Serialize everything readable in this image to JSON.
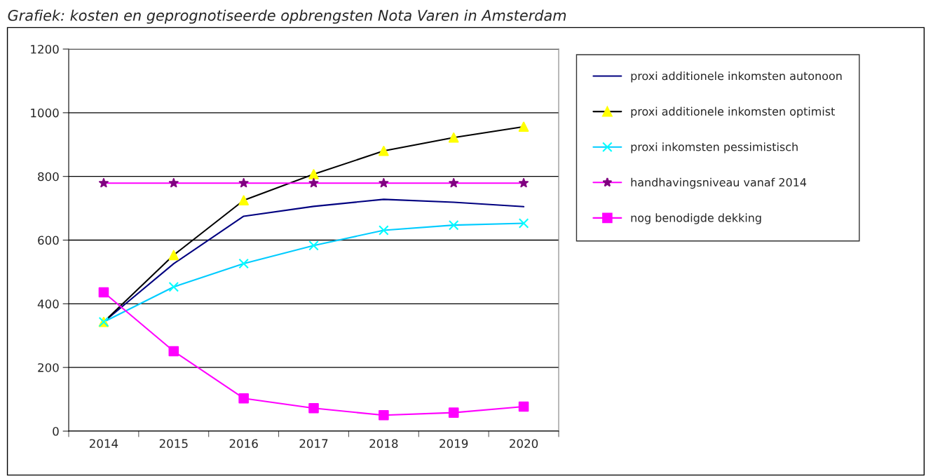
{
  "chart_data": {
    "type": "line",
    "title": "Grafiek: kosten en geprognotiseerde opbrengsten Nota Varen in Amsterdam",
    "categories": [
      "2014",
      "2015",
      "2016",
      "2017",
      "2018",
      "2019",
      "2020"
    ],
    "series": [
      {
        "name": "proxi additionele inkomsten autonoon",
        "color": "#000080",
        "marker": "none",
        "values": [
          343,
          526,
          675,
          706,
          728,
          719,
          705
        ]
      },
      {
        "name": "proxi additionele inkomsten optimist",
        "color": "#000000",
        "colors": [
          "#ffff00",
          "#ffff00",
          "#ffff00",
          "#ffff00",
          "#ffff00",
          "#ffff00",
          "#ffff00"
        ],
        "marker": "triangle",
        "values": [
          343,
          553,
          725,
          807,
          880,
          922,
          956
        ]
      },
      {
        "name": "proxi inkomsten pessimistisch",
        "color": "#00ccff",
        "colors": [
          "#00ffff",
          "#00ffff",
          "#00ffff",
          "#00ffff",
          "#00ffff",
          "#00ffff",
          "#00ffff"
        ],
        "marker": "cross",
        "values": [
          343,
          453,
          526,
          583,
          631,
          647,
          653
        ]
      },
      {
        "name": "handhavingsniveau vanaf 2014",
        "color": "#ff00ff",
        "colors": [
          "#800080",
          "#800080",
          "#800080",
          "#800080",
          "#800080",
          "#800080",
          "#800080"
        ],
        "marker": "star",
        "values": [
          779,
          779,
          779,
          779,
          779,
          779,
          779
        ]
      },
      {
        "name": "nog benodigde dekking",
        "color": "#ff00ff",
        "marker": "square",
        "values": [
          436,
          251,
          103,
          72,
          50,
          58,
          77
        ]
      }
    ],
    "ylim": [
      0,
      1200
    ],
    "yticks": [
      0,
      200,
      400,
      600,
      800,
      1000,
      1200
    ],
    "grid": "y",
    "legend": "right"
  }
}
